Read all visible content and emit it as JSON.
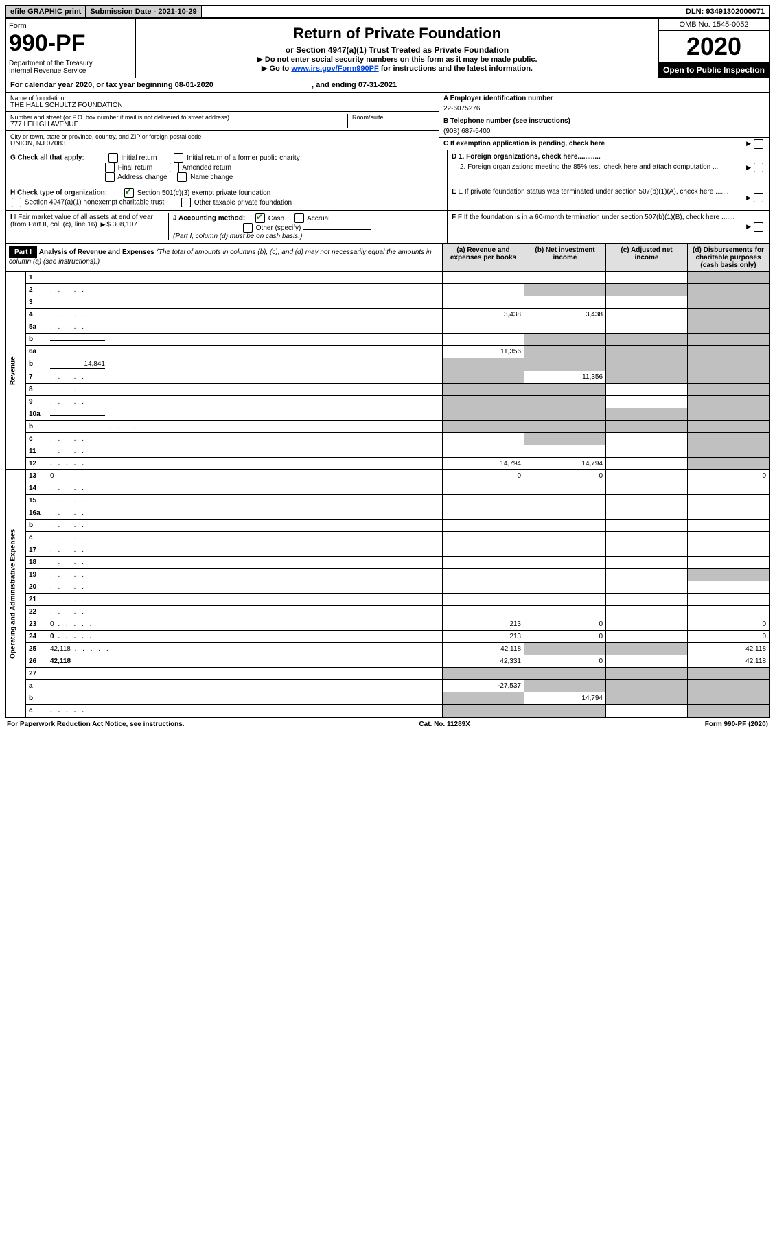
{
  "top": {
    "efile": "efile GRAPHIC print",
    "submission_label": "Submission Date - ",
    "submission_date": "2021-10-29",
    "dln_label": "DLN: ",
    "dln": "93491302000071"
  },
  "header": {
    "form_label": "Form",
    "form_no": "990-PF",
    "dept": "Department of the Treasury\nInternal Revenue Service",
    "title": "Return of Private Foundation",
    "subtitle": "or Section 4947(a)(1) Trust Treated as Private Foundation",
    "inst1": "▶ Do not enter social security numbers on this form as it may be made public.",
    "inst2_pre": "▶ Go to ",
    "inst2_link": "www.irs.gov/Form990PF",
    "inst2_post": " for instructions and the latest information.",
    "omb": "OMB No. 1545-0052",
    "year": "2020",
    "open": "Open to Public Inspection"
  },
  "cal": {
    "text_pre": "For calendar year 2020, or tax year beginning ",
    "begin": "08-01-2020",
    "mid": " , and ending ",
    "end": "07-31-2021"
  },
  "info": {
    "name_lbl": "Name of foundation",
    "name": "THE HALL SCHULTZ FOUNDATION",
    "addr_lbl": "Number and street (or P.O. box number if mail is not delivered to street address)",
    "addr": "777 LEHIGH AVENUE",
    "room_lbl": "Room/suite",
    "city_lbl": "City or town, state or province, country, and ZIP or foreign postal code",
    "city": "UNION, NJ  07083",
    "ein_lbl": "A Employer identification number",
    "ein": "22-6075276",
    "phone_lbl": "B Telephone number (see instructions)",
    "phone": "(908) 687-5400",
    "c_lbl": "C If exemption application is pending, check here",
    "g_lbl": "G Check all that apply:",
    "g_opts": [
      "Initial return",
      "Initial return of a former public charity",
      "Final return",
      "Amended return",
      "Address change",
      "Name change"
    ],
    "d1": "D 1. Foreign organizations, check here............",
    "d2": "2. Foreign organizations meeting the 85% test, check here and attach computation ...",
    "h_lbl": "H Check type of organization:",
    "h_501": "Section 501(c)(3) exempt private foundation",
    "h_4947": "Section 4947(a)(1) nonexempt charitable trust",
    "h_other": "Other taxable private foundation",
    "e_lbl": "E If private foundation status was terminated under section 507(b)(1)(A), check here .......",
    "i_lbl": "I Fair market value of all assets at end of year (from Part II, col. (c), line 16)",
    "i_val": "308,107",
    "j_lbl": "J Accounting method:",
    "j_cash": "Cash",
    "j_accr": "Accrual",
    "j_other": "Other (specify)",
    "j_note": "(Part I, column (d) must be on cash basis.)",
    "f_lbl": "F If the foundation is in a 60-month termination under section 507(b)(1)(B), check here ......."
  },
  "part1": {
    "label": "Part I",
    "title": "Analysis of Revenue and Expenses",
    "note": "(The total of amounts in columns (b), (c), and (d) may not necessarily equal the amounts in column (a) (see instructions).)",
    "cols": {
      "a": "(a) Revenue and expenses per books",
      "b": "(b) Net investment income",
      "c": "(c) Adjusted net income",
      "d": "(d) Disbursements for charitable purposes (cash basis only)"
    }
  },
  "sidelabels": {
    "rev": "Revenue",
    "exp": "Operating and Administrative Expenses"
  },
  "rows": [
    {
      "n": "1",
      "d": "",
      "a": "",
      "b": "",
      "c": "",
      "d_shade": true
    },
    {
      "n": "2",
      "d": "",
      "dots": true,
      "a": "",
      "b": "",
      "c": "",
      "b_shade": true,
      "c_shade": true,
      "d_shade": true
    },
    {
      "n": "3",
      "d": "",
      "a": "",
      "b": "",
      "c": "",
      "d_shade": true
    },
    {
      "n": "4",
      "d": "",
      "dots": true,
      "a": "3,438",
      "b": "3,438",
      "c": "",
      "d_shade": true
    },
    {
      "n": "5a",
      "d": "",
      "dots": true,
      "a": "",
      "b": "",
      "c": "",
      "d_shade": true
    },
    {
      "n": "b",
      "d": "",
      "inline": true,
      "a": "",
      "b": "",
      "c": "",
      "b_shade": true,
      "c_shade": true,
      "d_shade": true
    },
    {
      "n": "6a",
      "d": "",
      "a": "11,356",
      "b": "",
      "c": "",
      "b_shade": true,
      "c_shade": true,
      "d_shade": true
    },
    {
      "n": "b",
      "d": "",
      "inline": true,
      "inline_val": "14,841",
      "a": "",
      "b": "",
      "c": "",
      "a_shade": true,
      "b_shade": true,
      "c_shade": true,
      "d_shade": true
    },
    {
      "n": "7",
      "d": "",
      "dots": true,
      "a": "",
      "b": "11,356",
      "c": "",
      "a_shade": true,
      "c_shade": true,
      "d_shade": true
    },
    {
      "n": "8",
      "d": "",
      "dots": true,
      "a": "",
      "b": "",
      "c": "",
      "a_shade": true,
      "b_shade": true,
      "d_shade": true
    },
    {
      "n": "9",
      "d": "",
      "dots": true,
      "a": "",
      "b": "",
      "c": "",
      "a_shade": true,
      "b_shade": true,
      "d_shade": true
    },
    {
      "n": "10a",
      "d": "",
      "inline": true,
      "a": "",
      "b": "",
      "c": "",
      "a_shade": true,
      "b_shade": true,
      "c_shade": true,
      "d_shade": true
    },
    {
      "n": "b",
      "d": "",
      "dots": true,
      "inline": true,
      "a": "",
      "b": "",
      "c": "",
      "a_shade": true,
      "b_shade": true,
      "c_shade": true,
      "d_shade": true
    },
    {
      "n": "c",
      "d": "",
      "dots": true,
      "a": "",
      "b": "",
      "c": "",
      "b_shade": true,
      "d_shade": true
    },
    {
      "n": "11",
      "d": "",
      "dots": true,
      "a": "",
      "b": "",
      "c": "",
      "d_shade": true
    },
    {
      "n": "12",
      "d": "",
      "dots": true,
      "bold": true,
      "a": "14,794",
      "b": "14,794",
      "c": "",
      "d_shade": true
    },
    {
      "n": "13",
      "d": "0",
      "a": "0",
      "b": "0",
      "c": ""
    },
    {
      "n": "14",
      "d": "",
      "dots": true,
      "a": "",
      "b": "",
      "c": ""
    },
    {
      "n": "15",
      "d": "",
      "dots": true,
      "a": "",
      "b": "",
      "c": ""
    },
    {
      "n": "16a",
      "d": "",
      "dots": true,
      "a": "",
      "b": "",
      "c": ""
    },
    {
      "n": "b",
      "d": "",
      "dots": true,
      "a": "",
      "b": "",
      "c": ""
    },
    {
      "n": "c",
      "d": "",
      "dots": true,
      "a": "",
      "b": "",
      "c": ""
    },
    {
      "n": "17",
      "d": "",
      "dots": true,
      "a": "",
      "b": "",
      "c": ""
    },
    {
      "n": "18",
      "d": "",
      "dots": true,
      "a": "",
      "b": "",
      "c": ""
    },
    {
      "n": "19",
      "d": "",
      "dots": true,
      "a": "",
      "b": "",
      "c": "",
      "d_shade": true
    },
    {
      "n": "20",
      "d": "",
      "dots": true,
      "a": "",
      "b": "",
      "c": ""
    },
    {
      "n": "21",
      "d": "",
      "dots": true,
      "a": "",
      "b": "",
      "c": ""
    },
    {
      "n": "22",
      "d": "",
      "dots": true,
      "a": "",
      "b": "",
      "c": ""
    },
    {
      "n": "23",
      "d": "0",
      "dots": true,
      "a": "213",
      "b": "0",
      "c": ""
    },
    {
      "n": "24",
      "d": "0",
      "dots": true,
      "bold": true,
      "a": "213",
      "b": "0",
      "c": ""
    },
    {
      "n": "25",
      "d": "42,118",
      "dots": true,
      "a": "42,118",
      "b": "",
      "c": "",
      "b_shade": true,
      "c_shade": true
    },
    {
      "n": "26",
      "d": "42,118",
      "bold": true,
      "a": "42,331",
      "b": "0",
      "c": ""
    },
    {
      "n": "27",
      "d": "",
      "bold": true,
      "a": "",
      "b": "",
      "c": "",
      "a_shade": true,
      "b_shade": true,
      "c_shade": true,
      "d_shade": true
    },
    {
      "n": "a",
      "d": "",
      "bold": true,
      "a": "-27,537",
      "b": "",
      "c": "",
      "b_shade": true,
      "c_shade": true,
      "d_shade": true
    },
    {
      "n": "b",
      "d": "",
      "bold": true,
      "a": "",
      "b": "14,794",
      "c": "",
      "a_shade": true,
      "c_shade": true,
      "d_shade": true
    },
    {
      "n": "c",
      "d": "",
      "dots": true,
      "bold": true,
      "a": "",
      "b": "",
      "c": "",
      "a_shade": true,
      "b_shade": true,
      "d_shade": true
    }
  ],
  "footer": {
    "left": "For Paperwork Reduction Act Notice, see instructions.",
    "mid": "Cat. No. 11289X",
    "right": "Form 990-PF (2020)"
  }
}
